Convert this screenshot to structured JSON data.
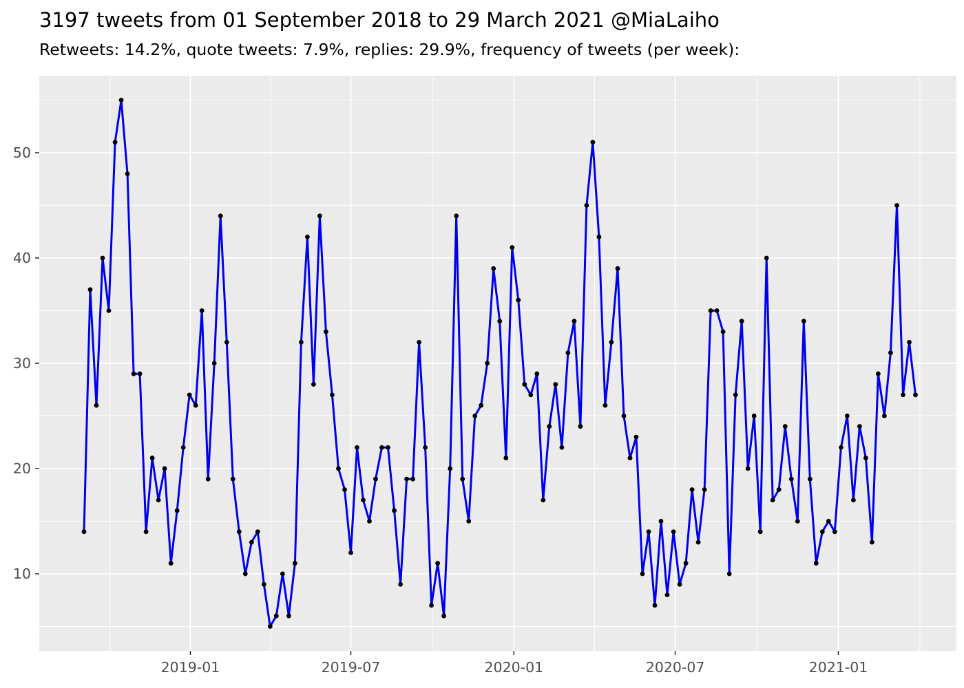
{
  "header": {
    "title": "3197 tweets from 01 September 2018 to 29 March 2021 @MiaLaiho",
    "subtitle": "Retweets: 14.2%, quote tweets: 7.9%, replies: 29.9%, frequency of tweets (per week):"
  },
  "chart_data": {
    "type": "line",
    "title": "3197 tweets from 01 September 2018 to 29 March 2021 @MiaLaiho",
    "subtitle": "Retweets: 14.2%, quote tweets: 7.9%, replies: 29.9%, frequency of tweets (per week):",
    "ylabel": "",
    "xlabel": "",
    "series_name": "tweets-per-week",
    "x_start": "2018-09-03",
    "x_interval_days": 7,
    "values": [
      14,
      37,
      26,
      40,
      35,
      51,
      55,
      48,
      29,
      29,
      14,
      21,
      17,
      20,
      11,
      16,
      22,
      27,
      26,
      35,
      19,
      30,
      44,
      32,
      19,
      14,
      10,
      13,
      14,
      9,
      5,
      6,
      10,
      6,
      11,
      32,
      42,
      28,
      44,
      33,
      27,
      20,
      18,
      12,
      22,
      17,
      15,
      19,
      22,
      22,
      16,
      9,
      19,
      19,
      32,
      22,
      7,
      11,
      6,
      20,
      44,
      19,
      15,
      25,
      26,
      30,
      39,
      34,
      21,
      41,
      36,
      28,
      27,
      29,
      17,
      24,
      28,
      22,
      31,
      34,
      24,
      45,
      51,
      42,
      26,
      32,
      39,
      25,
      21,
      23,
      10,
      14,
      7,
      15,
      8,
      14,
      9,
      11,
      18,
      13,
      18,
      35,
      35,
      33,
      10,
      27,
      34,
      20,
      25,
      14,
      40,
      17,
      18,
      24,
      19,
      15,
      34,
      19,
      11,
      14,
      15,
      14,
      22,
      25,
      17,
      24,
      21,
      13,
      29,
      25,
      31,
      45,
      27,
      32,
      27
    ],
    "x_tick_labels": [
      "2019-01",
      "2019-07",
      "2020-01",
      "2020-07",
      "2021-01"
    ],
    "y_tick_labels": [
      "10",
      "20",
      "30",
      "40",
      "50"
    ],
    "y_major_ticks": [
      10,
      20,
      30,
      40,
      50
    ],
    "y_minor_ticks": [
      5,
      15,
      25,
      35,
      45,
      55
    ],
    "ylim_displayed": [
      2.5,
      57.5
    ],
    "grid": "on",
    "legend": "none",
    "colors": {
      "line": "#0000EE",
      "point": "#000000",
      "panel_bg": "#EBEBEB",
      "grid": "#FFFFFF",
      "tick_label": "#4D4D4D",
      "tick_mark": "#333333",
      "title_text": "#000000",
      "page_bg": "#FFFFFF"
    }
  }
}
